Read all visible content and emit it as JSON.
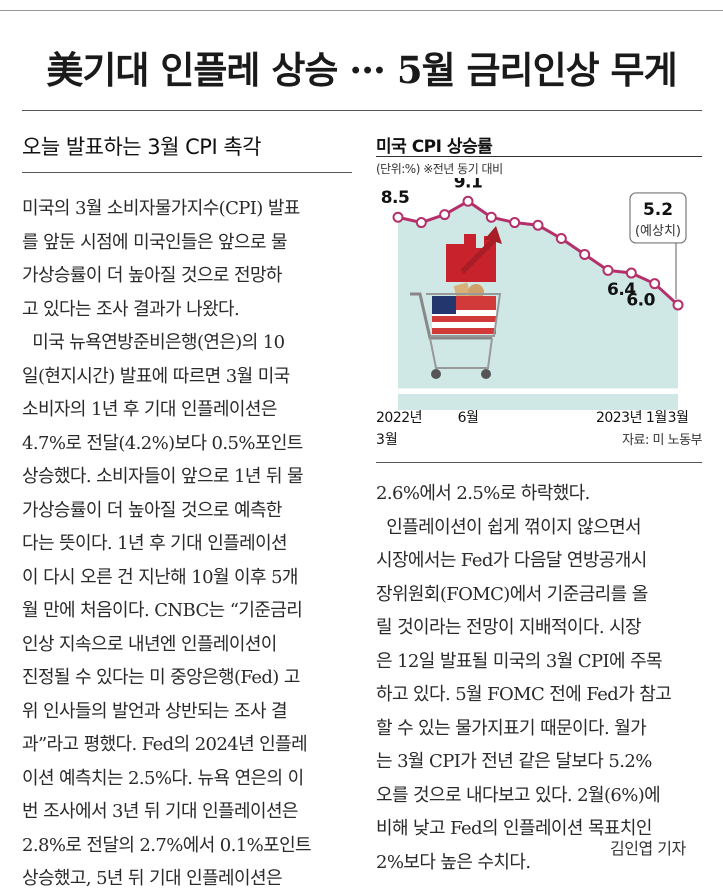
{
  "headline": "美기대 인플레 상승 ··· 5월 금리인상 무게",
  "subhead": "오늘 발표하는 3월 CPI 촉각",
  "left_column": [
    "미국의 3월 소비자물가지수(CPI) 발표",
    "를 앞둔 시점에 미국인들은 앞으로 물",
    "가상승률이 더 높아질 것으로 전망하",
    "고 있다는 조사 결과가 나왔다.",
    "  미국 뉴욕연방준비은행(연은)의 10",
    "일(현지시간) 발표에 따르면 3월 미국",
    "소비자의 1년 후 기대 인플레이션은",
    "4.7%로 전달(4.2%)보다 0.5%포인트",
    "상승했다. 소비자들이 앞으로 1년 뒤 물",
    "가상승률이 더 높아질 것으로 예측한",
    "다는 뜻이다. 1년 후 기대 인플레이션",
    "이 다시 오른 건 지난해 10월 이후 5개",
    "월 만에 처음이다. CNBC는 “기준금리",
    "인상 지속으로 내년엔 인플레이션이",
    "진정될 수 있다는 미 중앙은행(Fed) 고",
    "위 인사들의 발언과 상반되는 조사 결",
    "과”라고 평했다. Fed의 2024년 인플레",
    "이션 예측치는 2.5%다. 뉴욕 연은의 이",
    "번 조사에서 3년 뒤 기대 인플레이션은",
    "2.8%로 전달의 2.7%에서 0.1%포인트",
    "상승했고, 5년 뒤 기대 인플레이션은"
  ],
  "right_column": [
    "2.6%에서 2.5%로 하락했다.",
    "  인플레이션이 쉽게 꺾이지 않으면서",
    "시장에서는 Fed가 다음달 연방공개시",
    "장위원회(FOMC)에서 기준금리를 올",
    "릴 것이라는 전망이 지배적이다. 시장",
    "은 12일 발표될 미국의 3월 CPI에 주목",
    "하고 있다. 5월 FOMC 전에 Fed가 참고",
    "할 수 있는 물가지표기 때문이다. 월가",
    "는 3월 CPI가 전년 같은 달보다 5.2%",
    "오를 것으로 내다보고 있다. 2월(6%)에",
    "비해 낮고 Fed의 인플레이션 목표치인",
    "2%보다 높은 수치다."
  ],
  "byline": "김인엽 기자",
  "chart": {
    "title": "미국 CPI 상승률",
    "unit_note": "(단위:%)   ※전년 동기 대비",
    "source": "자료: 미 노동부",
    "forecast_label": "(예상치)",
    "x_tick_labels": [
      {
        "label": "2022년",
        "label2": "3월",
        "index": 0
      },
      {
        "label": "6월",
        "label2": "",
        "index": 3
      },
      {
        "label": "2023년 1월",
        "label2": "",
        "index": 10
      },
      {
        "label": "3월",
        "label2": "",
        "index": 12
      }
    ],
    "fill_color": "#cfe8e6",
    "line_color": "#b5306b"
  },
  "chart_data": {
    "type": "area",
    "title": "미국 CPI 상승률",
    "x": [
      "2022-03",
      "2022-04",
      "2022-05",
      "2022-06",
      "2022-07",
      "2022-08",
      "2022-09",
      "2022-10",
      "2022-11",
      "2022-12",
      "2023-01",
      "2023-02",
      "2023-03"
    ],
    "series": [
      {
        "values": [
          8.5,
          8.3,
          8.6,
          9.1,
          8.5,
          8.3,
          8.2,
          7.7,
          7.1,
          6.5,
          6.4,
          6.0,
          5.2
        ]
      }
    ],
    "data_labels": [
      {
        "index": 0,
        "text": "8.5"
      },
      {
        "index": 3,
        "text": "9.1"
      },
      {
        "index": 10,
        "text": "6.4"
      },
      {
        "index": 11,
        "text": "6.0"
      },
      {
        "index": 12,
        "text": "5.2"
      }
    ],
    "ylim": [
      2,
      9.6
    ],
    "forecast_index": 12
  }
}
